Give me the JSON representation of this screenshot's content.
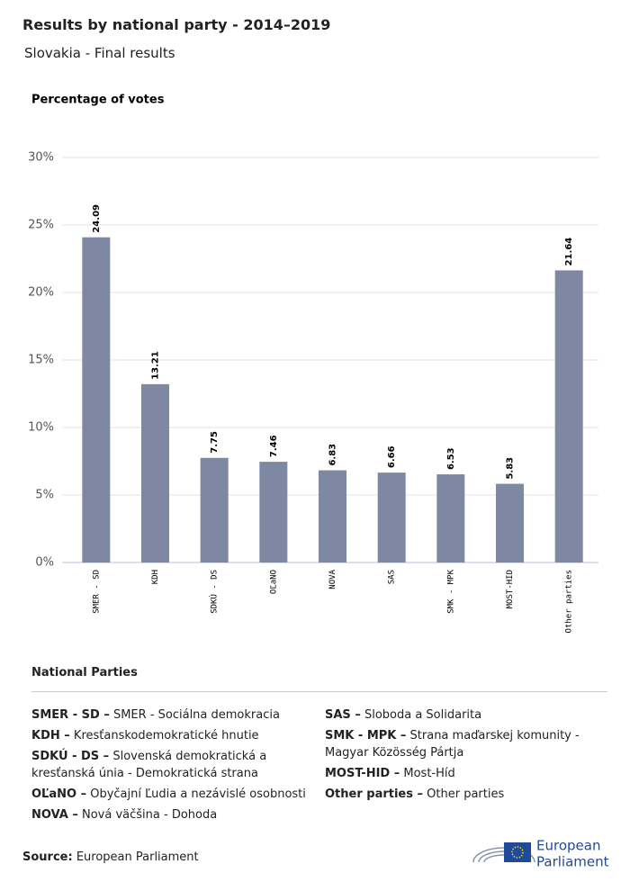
{
  "header": {
    "title": "Results by national party - 2014–2019",
    "subtitle": "Slovakia - Final results"
  },
  "chart_data": {
    "type": "bar",
    "y_label": "Percentage of votes",
    "categories": [
      "SMER - SD",
      "KDH",
      "SDKÚ - DS",
      "OĽaNO",
      "NOVA",
      "SAS",
      "SMK - MPK",
      "MOST-HID",
      "Other parties"
    ],
    "values": [
      24.09,
      13.21,
      7.75,
      7.46,
      6.83,
      6.66,
      6.53,
      5.83,
      21.64
    ],
    "color": "#7f88a3",
    "ylim": [
      0,
      30
    ],
    "yticks": [
      {
        "value": 0,
        "label": "0%"
      },
      {
        "value": 5,
        "label": "5%"
      },
      {
        "value": 10,
        "label": "10%"
      },
      {
        "value": 15,
        "label": "15%"
      },
      {
        "value": 20,
        "label": "20%"
      },
      {
        "value": 25,
        "label": "25%"
      },
      {
        "value": 30,
        "label": "30%"
      }
    ],
    "grid": true
  },
  "legend": {
    "title": "National Parties",
    "columns": [
      [
        {
          "abbr": "SMER - SD –",
          "name": "SMER - Sociálna demokracia"
        },
        {
          "abbr": "KDH –",
          "name": "Kresťanskodemokratické hnutie"
        },
        {
          "abbr": "SDKÚ - DS –",
          "name": "Slovenská demokratická a kresťanská únia - Demokratická strana"
        },
        {
          "abbr": "OĽaNO –",
          "name": "Obyčajní Ľudia a nezávislé osobnosti"
        },
        {
          "abbr": "NOVA –",
          "name": "Nová väčšina - Dohoda"
        }
      ],
      [
        {
          "abbr": "SAS –",
          "name": "Sloboda a Solidarita"
        },
        {
          "abbr": "SMK - MPK –",
          "name": "Strana maďarskej komunity - Magyar Közösség Pártja"
        },
        {
          "abbr": "MOST-HID –",
          "name": "Most-Híd"
        },
        {
          "abbr": "Other parties –",
          "name": "Other parties"
        }
      ]
    ]
  },
  "footer": {
    "source_label": "Source:",
    "source": "European Parliament",
    "logo_line1": "European",
    "logo_line2": "Parliament"
  }
}
